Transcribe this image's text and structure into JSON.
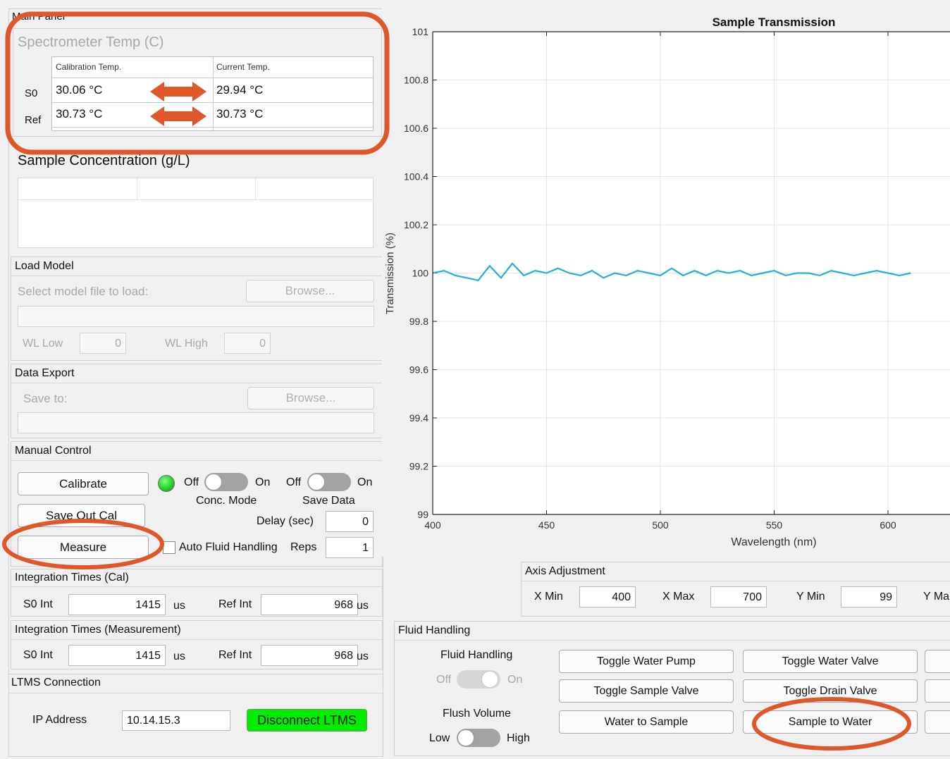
{
  "main_panel": {
    "title": "Main Panel"
  },
  "spectrometer": {
    "title": "Spectrometer Temp (C)",
    "col_calibration": "Calibration Temp.",
    "col_current": "Current Temp.",
    "rows": [
      {
        "label": "S0",
        "calibration": "30.06 °C",
        "current": "29.94 °C"
      },
      {
        "label": "Ref",
        "calibration": "30.73 °C",
        "current": "30.73 °C"
      }
    ]
  },
  "concentration": {
    "title": "Sample Concentration (g/L)"
  },
  "load_model": {
    "title": "Load Model",
    "select_label": "Select model file to load:",
    "browse_label": "Browse...",
    "wl_low_label": "WL Low",
    "wl_low_value": "0",
    "wl_high_label": "WL High",
    "wl_high_value": "0"
  },
  "data_export": {
    "title": "Data Export",
    "save_to_label": "Save to:",
    "browse_label": "Browse..."
  },
  "manual_control": {
    "title": "Manual Control",
    "calibrate_label": "Calibrate",
    "save_out_cal_label": "Save Out Cal",
    "measure_label": "Measure",
    "indicator_color": "#22cc22",
    "conc_mode": {
      "off": "Off",
      "on": "On",
      "label": "Conc. Mode"
    },
    "save_data": {
      "off": "Off",
      "on": "On",
      "label": "Save Data"
    },
    "delay_label": "Delay (sec)",
    "delay_value": "0",
    "auto_fluid_label": "Auto Fluid Handling",
    "reps_label": "Reps",
    "reps_value": "1"
  },
  "integration_cal": {
    "title": "Integration Times (Cal)",
    "s0_label": "S0 Int",
    "s0_value": "1415",
    "s0_unit": "us",
    "ref_label": "Ref Int",
    "ref_value": "968",
    "ref_unit": "us"
  },
  "integration_meas": {
    "title": "Integration Times (Measurement)",
    "s0_label": "S0 Int",
    "s0_value": "1415",
    "s0_unit": "us",
    "ref_label": "Ref Int",
    "ref_value": "968",
    "ref_unit": "us"
  },
  "ltms": {
    "title": "LTMS Connection",
    "ip_label": "IP Address",
    "ip_value": "10.14.15.3",
    "disconnect_label": "Disconnect LTMS",
    "disconnect_color": "#00ee00"
  },
  "axis_adjustment": {
    "title": "Axis Adjustment",
    "xmin_label": "X Min",
    "xmin_value": "400",
    "xmax_label": "X Max",
    "xmax_value": "700",
    "ymin_label": "Y Min",
    "ymin_value": "99",
    "ymax_label": "Y Ma"
  },
  "fluid_handling": {
    "title": "Fluid Handling",
    "toggle_title": "Fluid Handling",
    "off": "Off",
    "on": "On",
    "flush_title": "Flush Volume",
    "low": "Low",
    "high": "High",
    "buttons": {
      "toggle_water_pump": "Toggle Water Pump",
      "toggle_water_valve": "Toggle Water Valve",
      "toggle_sample_valve": "Toggle Sample Valve",
      "toggle_drain_valve": "Toggle Drain Valve",
      "water_to_sample": "Water to Sample",
      "sample_to_water": "Sample to Water"
    }
  },
  "annotation_color": "#e0582a",
  "chart_data": {
    "type": "line",
    "title": "Sample Transmission",
    "xlabel": "Wavelength (nm)",
    "ylabel": "Transmission (%)",
    "xlim": [
      400,
      700
    ],
    "ylim": [
      99,
      101
    ],
    "xticks": [
      400,
      450,
      500,
      550,
      600
    ],
    "yticks": [
      99,
      99.2,
      99.4,
      99.6,
      99.8,
      100,
      100.2,
      100.4,
      100.6,
      100.8,
      101
    ],
    "grid": true,
    "line_color": "#1fb0dc",
    "series": [
      {
        "x": [
          400,
          405,
          410,
          415,
          420,
          425,
          430,
          435,
          440,
          445,
          450,
          455,
          460,
          465,
          470,
          475,
          480,
          485,
          490,
          495,
          500,
          505,
          510,
          515,
          520,
          525,
          530,
          535,
          540,
          545,
          550,
          555,
          560,
          565,
          570,
          575,
          580,
          585,
          590,
          595,
          600,
          605,
          610
        ],
        "values": [
          100.0,
          100.01,
          99.99,
          99.98,
          99.97,
          100.03,
          99.98,
          100.04,
          99.99,
          100.01,
          100.0,
          100.02,
          100.0,
          99.99,
          100.01,
          99.98,
          100.0,
          99.99,
          100.01,
          100.0,
          99.99,
          100.02,
          99.99,
          100.01,
          99.99,
          100.01,
          100.0,
          100.01,
          99.99,
          100.0,
          100.01,
          99.99,
          100.0,
          100.0,
          99.99,
          100.01,
          100.0,
          99.99,
          100.0,
          100.01,
          100.0,
          99.99,
          100.0
        ]
      }
    ]
  }
}
